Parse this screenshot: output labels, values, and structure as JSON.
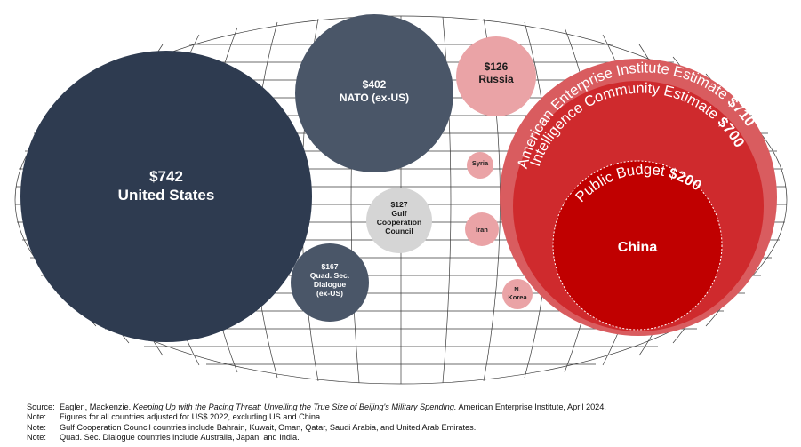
{
  "chart_data": {
    "type": "bubble",
    "units": "US$ billions",
    "bubbles": [
      {
        "id": "us",
        "value_label": "$742",
        "name_lines": [
          "United States"
        ],
        "value": 742,
        "color": "#2e3b50"
      },
      {
        "id": "nato",
        "value_label": "$402",
        "name_lines": [
          "NATO (ex-US)"
        ],
        "value": 402,
        "color": "#4a5668"
      },
      {
        "id": "russia",
        "value_label": "$126",
        "name_lines": [
          "Russia"
        ],
        "value": 126,
        "color": "#eaa3a6"
      },
      {
        "id": "gcc",
        "value_label": "$127",
        "name_lines": [
          "Gulf",
          "Cooperation",
          "Council"
        ],
        "value": 127,
        "color": "#d5d5d5"
      },
      {
        "id": "quad",
        "value_label": "$167",
        "name_lines": [
          "Quad. Sec.",
          "Dialogue",
          "(ex-US)"
        ],
        "value": 167,
        "color": "#4a5668"
      },
      {
        "id": "syria",
        "value_label": "",
        "name_lines": [
          "Syria"
        ],
        "color": "#eaa3a6"
      },
      {
        "id": "iran",
        "value_label": "",
        "name_lines": [
          "Iran"
        ],
        "color": "#eaa3a6"
      },
      {
        "id": "nkorea",
        "value_label": "",
        "name_lines": [
          "N.",
          "Korea"
        ],
        "color": "#eaa3a6"
      }
    ],
    "china": {
      "name": "China",
      "estimates": [
        {
          "id": "aei",
          "label": "American Enterprise Institute Estimate",
          "value_label": "$710",
          "value": 710,
          "color": "#d95c5f"
        },
        {
          "id": "ic",
          "label": "Intelligence Community Estimate",
          "value_label": "$700",
          "value": 700,
          "color": "#cf2a2d"
        },
        {
          "id": "public",
          "label": "Public Budget",
          "value_label": "$200",
          "value": 200,
          "color": "#c00000"
        }
      ]
    }
  },
  "notes": {
    "source_label": "Source:",
    "source_pre": "Eaglen, Mackenzie.",
    "source_title": "Keeping Up with the Pacing Threat: Unveiling the True Size of Beijing's Military Spending.",
    "source_post": "American Enterprise Institute, April 2024.",
    "note_label": "Note:",
    "note_1": "Figures for all countries adjusted for US$ 2022, excluding US and China.",
    "note_2": "Gulf Cooperation Council countries include Bahrain, Kuwait, Oman, Qatar, Saudi Arabia, and United Arab Emirates.",
    "note_3": "Quad. Sec. Dialogue countries include Australia, Japan, and India."
  }
}
